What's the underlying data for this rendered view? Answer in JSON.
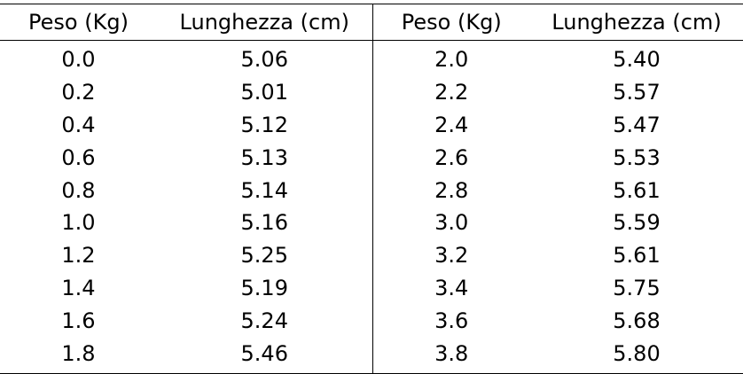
{
  "table": {
    "headers": [
      "Peso (Kg)",
      "Lunghezza (cm)",
      "Peso (Kg)",
      "Lunghezza (cm)"
    ],
    "rows": [
      [
        "0.0",
        "5.06",
        "2.0",
        "5.40"
      ],
      [
        "0.2",
        "5.01",
        "2.2",
        "5.57"
      ],
      [
        "0.4",
        "5.12",
        "2.4",
        "5.47"
      ],
      [
        "0.6",
        "5.13",
        "2.6",
        "5.53"
      ],
      [
        "0.8",
        "5.14",
        "2.8",
        "5.61"
      ],
      [
        "1.0",
        "5.16",
        "3.0",
        "5.59"
      ],
      [
        "1.2",
        "5.25",
        "3.2",
        "5.61"
      ],
      [
        "1.4",
        "5.19",
        "3.4",
        "5.75"
      ],
      [
        "1.6",
        "5.24",
        "3.6",
        "5.68"
      ],
      [
        "1.8",
        "5.46",
        "3.8",
        "5.80"
      ]
    ]
  }
}
